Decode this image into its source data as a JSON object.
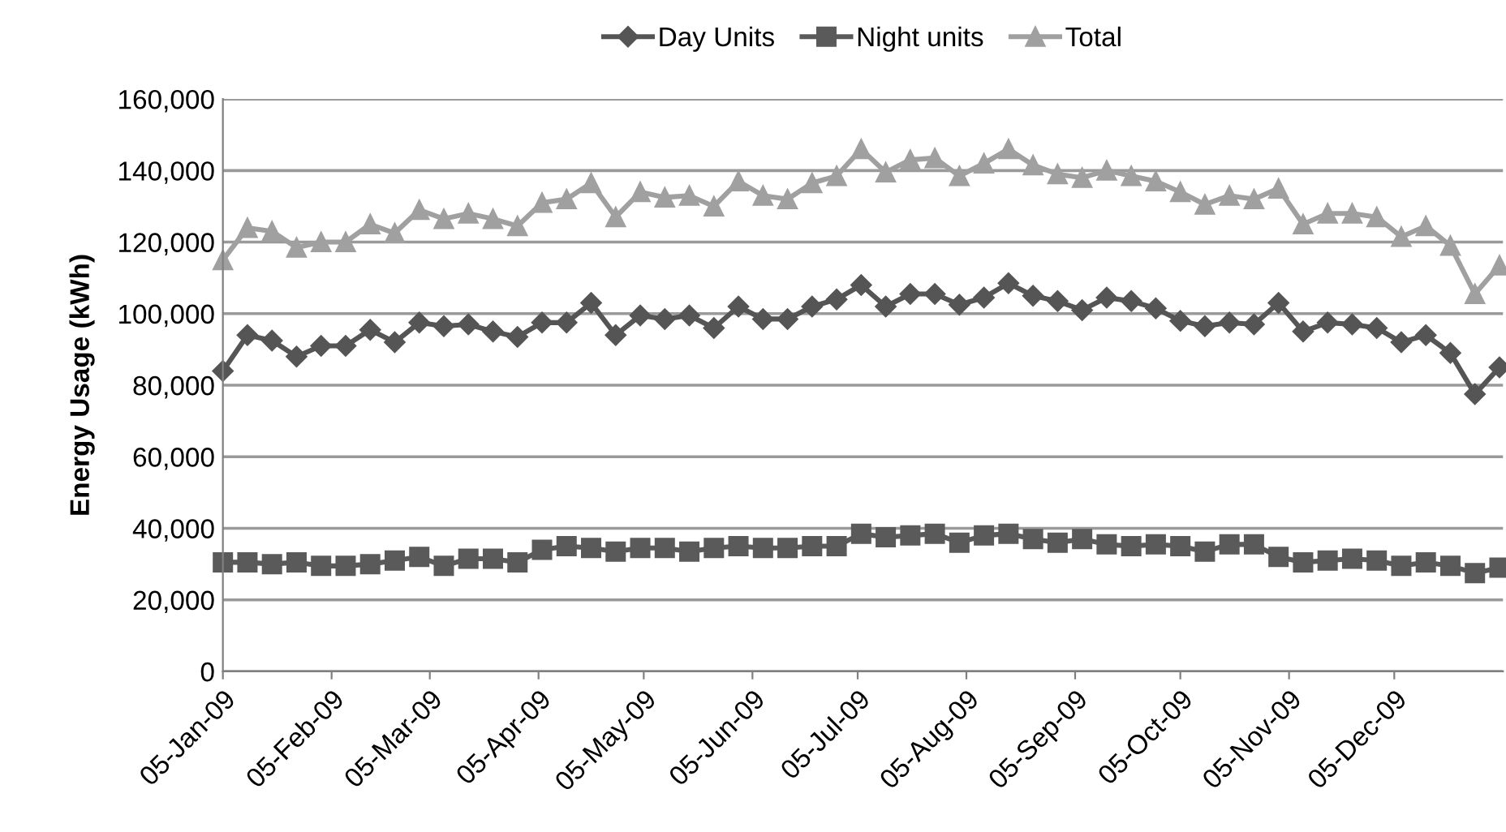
{
  "chart_data": {
    "type": "line",
    "ylabel": "Energy Usage (kWh)",
    "x": [
      "2009-01-05",
      "2009-01-12",
      "2009-01-19",
      "2009-01-26",
      "2009-02-02",
      "2009-02-09",
      "2009-02-16",
      "2009-02-23",
      "2009-03-02",
      "2009-03-09",
      "2009-03-16",
      "2009-03-23",
      "2009-03-30",
      "2009-04-06",
      "2009-04-13",
      "2009-04-20",
      "2009-04-27",
      "2009-05-04",
      "2009-05-11",
      "2009-05-18",
      "2009-05-25",
      "2009-06-01",
      "2009-06-08",
      "2009-06-15",
      "2009-06-22",
      "2009-06-29",
      "2009-07-06",
      "2009-07-13",
      "2009-07-20",
      "2009-07-27",
      "2009-08-03",
      "2009-08-10",
      "2009-08-17",
      "2009-08-24",
      "2009-08-31",
      "2009-09-07",
      "2009-09-14",
      "2009-09-21",
      "2009-09-28",
      "2009-10-05",
      "2009-10-12",
      "2009-10-19",
      "2009-10-26",
      "2009-11-02",
      "2009-11-09",
      "2009-11-16",
      "2009-11-23",
      "2009-11-30",
      "2009-12-07",
      "2009-12-14",
      "2009-12-21",
      "2009-12-28",
      "2010-01-04"
    ],
    "series": [
      {
        "name": "Day Units",
        "color": "#555555",
        "marker": "diamond",
        "values": [
          84000,
          94000,
          92500,
          88000,
          91000,
          91000,
          95500,
          92000,
          97500,
          96500,
          97000,
          95000,
          93500,
          97500,
          97500,
          103000,
          94000,
          99500,
          98500,
          99500,
          96000,
          102000,
          98500,
          98500,
          102000,
          104000,
          108000,
          102000,
          105500,
          105500,
          102500,
          104500,
          108500,
          105000,
          103500,
          101000,
          104500,
          103500,
          101500,
          98000,
          96500,
          97500,
          97000,
          103000,
          95000,
          97500,
          97000,
          96000,
          92000,
          94000,
          89000,
          77500,
          85000
        ]
      },
      {
        "name": "Night units",
        "color": "#5a5a5a",
        "marker": "square",
        "values": [
          30500,
          30500,
          30000,
          30500,
          29500,
          29500,
          30000,
          31000,
          32000,
          29500,
          31500,
          31500,
          30500,
          34000,
          35000,
          34500,
          33500,
          34500,
          34500,
          33500,
          34500,
          35000,
          34500,
          34500,
          35000,
          35000,
          38500,
          37500,
          38000,
          38500,
          36000,
          38000,
          38500,
          37000,
          36000,
          37000,
          35500,
          35000,
          35500,
          35000,
          33500,
          35500,
          35500,
          32000,
          30500,
          31000,
          31500,
          31000,
          29500,
          30500,
          29500,
          27500,
          29000
        ]
      },
      {
        "name": "Total",
        "color": "#a0a0a0",
        "marker": "triangle",
        "values": [
          115000,
          124000,
          123000,
          118500,
          120000,
          120000,
          125000,
          122500,
          129000,
          126500,
          128000,
          126500,
          124500,
          131000,
          132000,
          136500,
          127000,
          134000,
          132500,
          133000,
          130000,
          137000,
          133000,
          132000,
          136500,
          138500,
          146000,
          139500,
          143000,
          143500,
          138500,
          142000,
          146000,
          141500,
          139000,
          138000,
          140000,
          138500,
          137000,
          134000,
          130500,
          133000,
          132000,
          135000,
          125000,
          128000,
          128000,
          127000,
          121500,
          124500,
          119000,
          105500,
          113500
        ]
      }
    ],
    "xlim": [
      "2009-01-05",
      "2010-01-05"
    ],
    "xticks": [
      {
        "value": "2009-01-05",
        "label": "05-Jan-09"
      },
      {
        "value": "2009-02-05",
        "label": "05-Feb-09"
      },
      {
        "value": "2009-03-05",
        "label": "05-Mar-09"
      },
      {
        "value": "2009-04-05",
        "label": "05-Apr-09"
      },
      {
        "value": "2009-05-05",
        "label": "05-May-09"
      },
      {
        "value": "2009-06-05",
        "label": "05-Jun-09"
      },
      {
        "value": "2009-07-05",
        "label": "05-Jul-09"
      },
      {
        "value": "2009-08-05",
        "label": "05-Aug-09"
      },
      {
        "value": "2009-09-05",
        "label": "05-Sep-09"
      },
      {
        "value": "2009-10-05",
        "label": "05-Oct-09"
      },
      {
        "value": "2009-11-05",
        "label": "05-Nov-09"
      },
      {
        "value": "2009-12-05",
        "label": "05-Dec-09"
      }
    ],
    "ylim": [
      0,
      160000
    ],
    "yticks": [
      0,
      {
        "value": 20000,
        "label": "20,000"
      },
      {
        "value": 40000,
        "label": "40,000"
      },
      {
        "value": 60000,
        "label": "60,000"
      },
      {
        "value": 80000,
        "label": "80,000"
      },
      {
        "value": 100000,
        "label": "100,000"
      },
      {
        "value": 120000,
        "label": "120,000"
      },
      {
        "value": 140000,
        "label": "140,000"
      },
      {
        "value": 160000,
        "label": "160,000"
      }
    ],
    "grid": "y",
    "legend": "top",
    "line_style": "solid"
  }
}
